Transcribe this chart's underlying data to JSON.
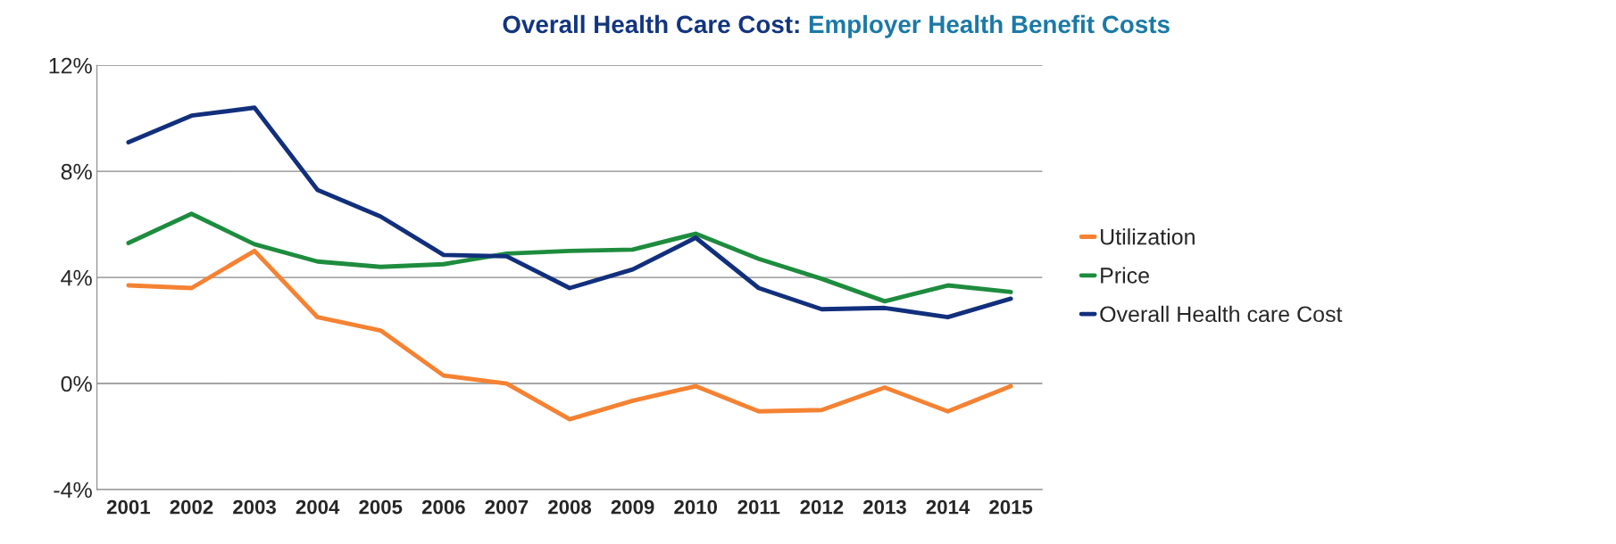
{
  "chart_data": {
    "type": "line",
    "title": "Overall Health Care Cost:",
    "subtitle": "Employer Health Benefit Costs",
    "categories": [
      "2001",
      "2002",
      "2003",
      "2004",
      "2005",
      "2006",
      "2007",
      "2008",
      "2009",
      "2010",
      "2011",
      "2012",
      "2013",
      "2014",
      "2015"
    ],
    "series": [
      {
        "name": "Utilization",
        "color": "#f58233",
        "values": [
          3.7,
          3.6,
          5.0,
          2.5,
          2.0,
          0.3,
          0.0,
          -1.35,
          -0.65,
          -0.1,
          -1.05,
          -1.0,
          -0.15,
          -1.05,
          -0.1
        ]
      },
      {
        "name": "Price",
        "color": "#1e8c3e",
        "values": [
          5.3,
          6.4,
          5.25,
          4.6,
          4.4,
          4.5,
          4.9,
          5.0,
          5.05,
          5.65,
          4.7,
          3.95,
          3.1,
          3.7,
          3.45
        ]
      },
      {
        "name": "Overall Health care Cost",
        "color": "#112f7c",
        "values": [
          9.1,
          10.1,
          10.4,
          7.3,
          6.3,
          4.85,
          4.8,
          3.6,
          4.3,
          5.5,
          3.6,
          2.8,
          2.85,
          2.5,
          3.2
        ]
      }
    ],
    "ylim": [
      -4,
      12
    ],
    "yticks": [
      {
        "value": -4,
        "label": "-4%"
      },
      {
        "value": 0,
        "label": "0%"
      },
      {
        "value": 4,
        "label": "4%"
      },
      {
        "value": 8,
        "label": "8%"
      },
      {
        "value": 12,
        "label": "12%"
      }
    ],
    "grid": "y",
    "legend": "right",
    "marker": "none",
    "line_style": "solid"
  }
}
